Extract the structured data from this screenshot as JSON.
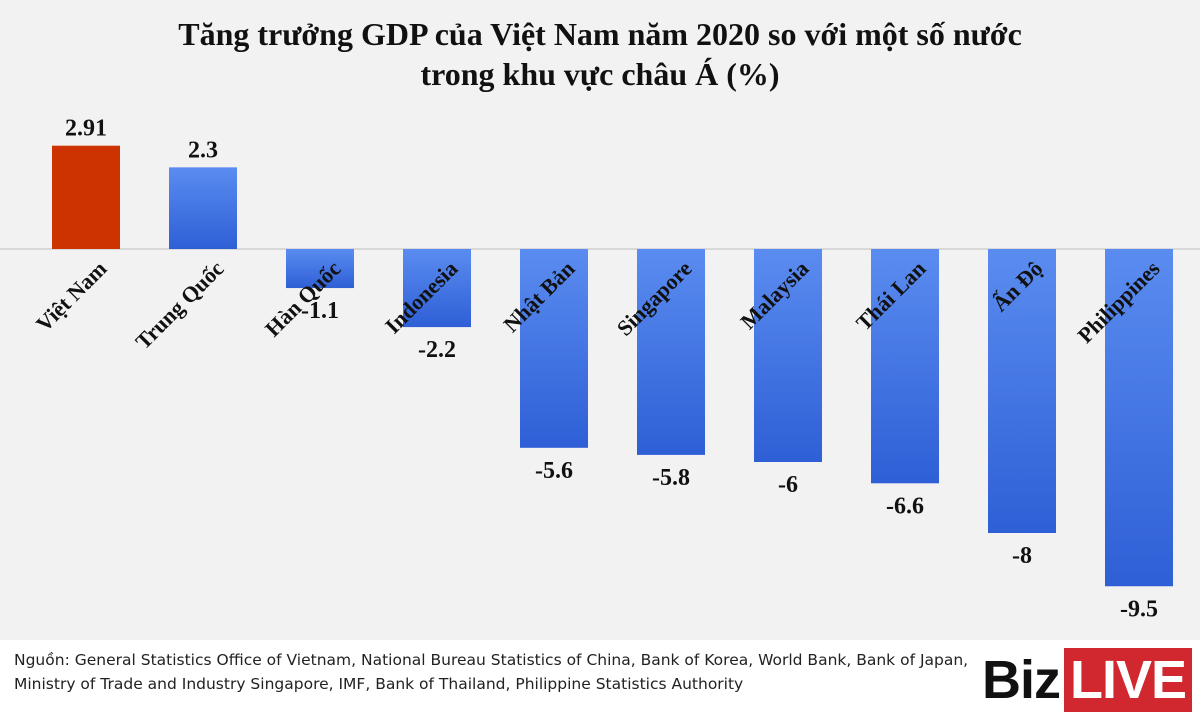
{
  "chart_data": {
    "type": "bar",
    "title_line1": "Tăng trưởng GDP của Việt Nam năm 2020 so với một số nước",
    "title_line2": "trong khu vực châu Á (%)",
    "categories": [
      "Việt Nam",
      "Trung Quốc",
      "Hàn Quốc",
      "Indonesia",
      "Nhật Bản",
      "Singapore",
      "Malaysia",
      "Thái Lan",
      "Ấn Độ",
      "Philippines"
    ],
    "values": [
      2.91,
      2.3,
      -1.1,
      -2.2,
      -5.6,
      -5.8,
      -6,
      -6.6,
      -8,
      -9.5
    ],
    "value_labels": [
      "2.91",
      "2.3",
      "-1.1",
      "-2.2",
      "-5.6",
      "-5.8",
      "-6",
      "-6.6",
      "-8",
      "-9.5"
    ],
    "highlight_color": "#cc3300",
    "bar_color": "#3d6fe0",
    "ylim": [
      -9.5,
      2.91
    ],
    "grid": false
  },
  "footer": {
    "source_line1": "Nguồn: General Statistics Office of Vietnam, National Bureau Statistics of China, Bank of Korea, World Bank, Bank of Japan,",
    "source_line2": "Ministry of Trade and Industry Singapore, IMF, Bank of Thailand, Philippine Statistics Authority",
    "logo_biz": "Biz",
    "logo_live": "LIVE"
  }
}
